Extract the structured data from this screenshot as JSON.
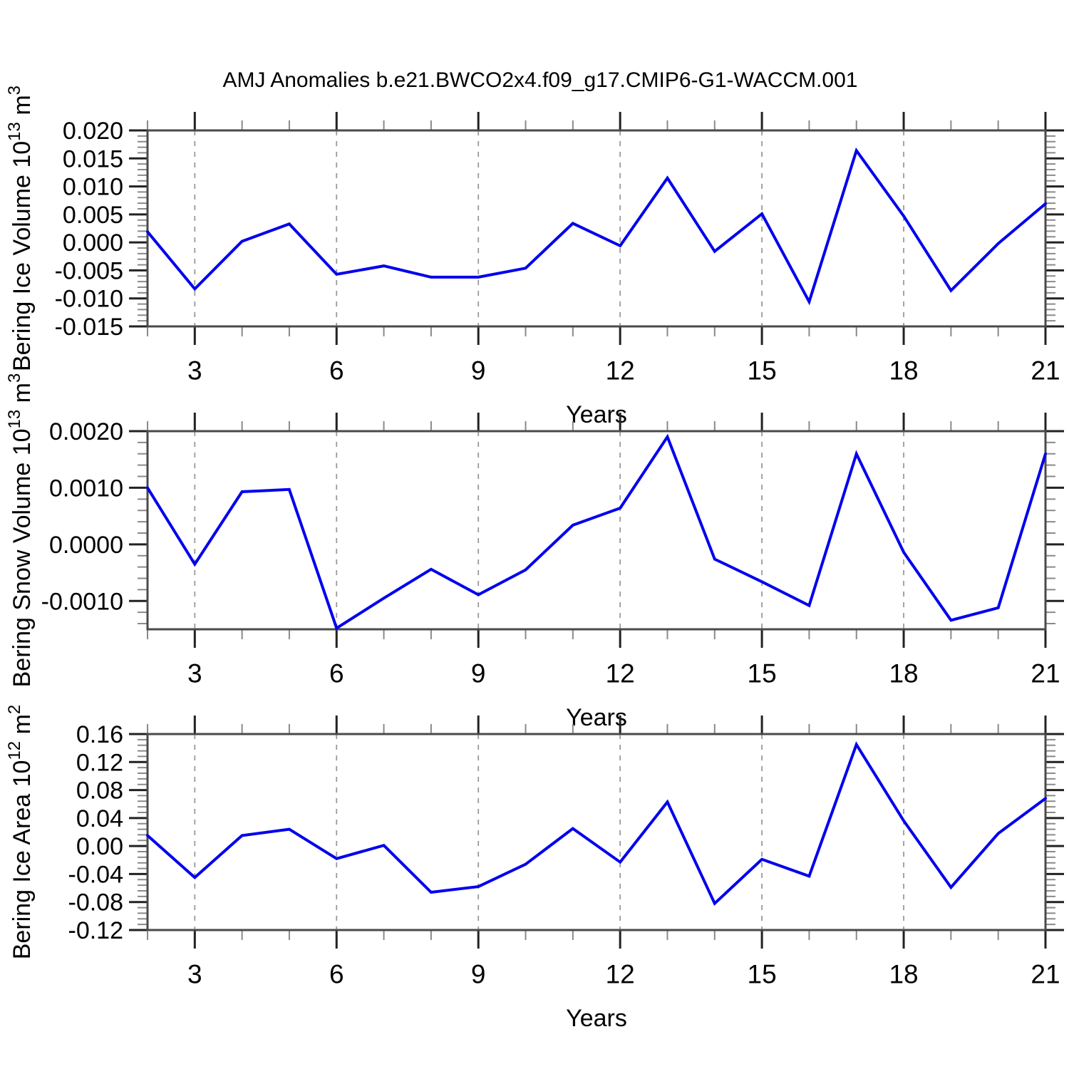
{
  "title": "AMJ Anomalies b.e21.BWCO2x4.f09_g17.CMIP6-G1-WACCM.001",
  "figure": {
    "background": "#ffffff",
    "line_color": "#0000ee",
    "axis_color": "#4a4a4a",
    "tick_major_color": "#222222",
    "tick_minor_color": "#8a8a8a",
    "grid_color": "#9a9a9a",
    "text_color": "#000000"
  },
  "chart_data": [
    {
      "name": "bering-ice-volume",
      "type": "line",
      "title": "AMJ Anomalies b.e21.BWCO2x4.f09_g17.CMIP6-G1-WACCM.001",
      "ylabel": "Bering Ice Volume 10^13 m^3",
      "ylabel_rich": [
        [
          "Bering Ice Volume 10",
          false
        ],
        [
          "13",
          true
        ],
        [
          " m",
          false
        ],
        [
          "3",
          true
        ]
      ],
      "xlabel": "Years",
      "ylim": [
        -0.015,
        0.02
      ],
      "ytick_values": [
        0.02,
        0.015,
        0.01,
        0.005,
        0.0,
        -0.005,
        -0.01,
        -0.015
      ],
      "ytick_labels": [
        "0.020",
        "0.015",
        "0.010",
        "0.005",
        "0.000",
        "-0.005",
        "-0.010",
        "-0.015"
      ],
      "y_minor_step": 0.001,
      "xlim": [
        2,
        21
      ],
      "xticks": [
        3,
        6,
        9,
        12,
        15,
        18,
        21
      ],
      "xtick_labels": [
        "3",
        "6",
        "9",
        "12",
        "15",
        "18",
        "21"
      ],
      "x_minor_step": 1,
      "grid_x": [
        3,
        6,
        9,
        12,
        15,
        18
      ],
      "grid": true,
      "legend": "none",
      "x": [
        2,
        3,
        4,
        5,
        6,
        7,
        8,
        9,
        10,
        11,
        12,
        13,
        14,
        15,
        16,
        17,
        18,
        19,
        20,
        21
      ],
      "values": [
        0.0019,
        -0.0083,
        0.0002,
        0.0033,
        -0.0057,
        -0.0042,
        -0.0062,
        -0.0062,
        -0.0046,
        0.0034,
        -0.0006,
        0.0115,
        -0.0016,
        0.0051,
        -0.0106,
        0.0164,
        0.0047,
        -0.0086,
        -0.0002,
        0.0069
      ]
    },
    {
      "name": "bering-snow-volume",
      "type": "line",
      "ylabel": "Bering Snow Volume 10^13 m^3",
      "ylabel_rich": [
        [
          "Bering Snow Volume 10",
          false
        ],
        [
          "13",
          true
        ],
        [
          " m",
          false
        ],
        [
          "3",
          true
        ]
      ],
      "xlabel": "Years",
      "ylim": [
        -0.0015,
        0.002
      ],
      "ytick_values": [
        0.002,
        0.001,
        0.0,
        -0.001
      ],
      "ytick_labels": [
        "0.0020",
        "0.0010",
        "0.0000",
        "-0.0010"
      ],
      "y_minor_step": 0.0002,
      "xlim": [
        2,
        21
      ],
      "xticks": [
        3,
        6,
        9,
        12,
        15,
        18,
        21
      ],
      "xtick_labels": [
        "3",
        "6",
        "9",
        "12",
        "15",
        "18",
        "21"
      ],
      "x_minor_step": 1,
      "grid_x": [
        3,
        6,
        9,
        12,
        15,
        18
      ],
      "grid": true,
      "legend": "none",
      "x": [
        2,
        3,
        4,
        5,
        6,
        7,
        8,
        9,
        10,
        11,
        12,
        13,
        14,
        15,
        16,
        17,
        18,
        19,
        20,
        21
      ],
      "values": [
        0.001,
        -0.00035,
        0.00093,
        0.00097,
        -0.00148,
        -0.00095,
        -0.00044,
        -0.00089,
        -0.00045,
        0.00034,
        0.00064,
        0.0019,
        -0.00026,
        -0.00066,
        -0.00108,
        0.0016,
        -0.00014,
        -0.00134,
        -0.00112,
        0.0016
      ]
    },
    {
      "name": "bering-ice-area",
      "type": "line",
      "ylabel": "Bering Ice Area 10^12 m^2",
      "ylabel_rich": [
        [
          "Bering Ice Area 10",
          false
        ],
        [
          "12",
          true
        ],
        [
          " m",
          false
        ],
        [
          "2",
          true
        ]
      ],
      "xlabel": "Years",
      "ylim": [
        -0.12,
        0.16
      ],
      "ytick_values": [
        0.16,
        0.12,
        0.08,
        0.04,
        0.0,
        -0.04,
        -0.08,
        -0.12
      ],
      "ytick_labels": [
        "0.16",
        "0.12",
        "0.08",
        "0.04",
        "0.00",
        "-0.04",
        "-0.08",
        "-0.12"
      ],
      "y_minor_step": 0.008,
      "xlim": [
        2,
        21
      ],
      "xticks": [
        3,
        6,
        9,
        12,
        15,
        18,
        21
      ],
      "xtick_labels": [
        "3",
        "6",
        "9",
        "12",
        "15",
        "18",
        "21"
      ],
      "x_minor_step": 1,
      "grid_x": [
        3,
        6,
        9,
        12,
        15,
        18
      ],
      "grid": true,
      "legend": "none",
      "x": [
        2,
        3,
        4,
        5,
        6,
        7,
        8,
        9,
        10,
        11,
        12,
        13,
        14,
        15,
        16,
        17,
        18,
        19,
        20,
        21
      ],
      "values": [
        0.015,
        -0.045,
        0.015,
        0.024,
        -0.018,
        0.001,
        -0.066,
        -0.058,
        -0.026,
        0.025,
        -0.023,
        0.063,
        -0.082,
        -0.019,
        -0.043,
        0.145,
        0.036,
        -0.059,
        0.018,
        0.068
      ]
    }
  ]
}
